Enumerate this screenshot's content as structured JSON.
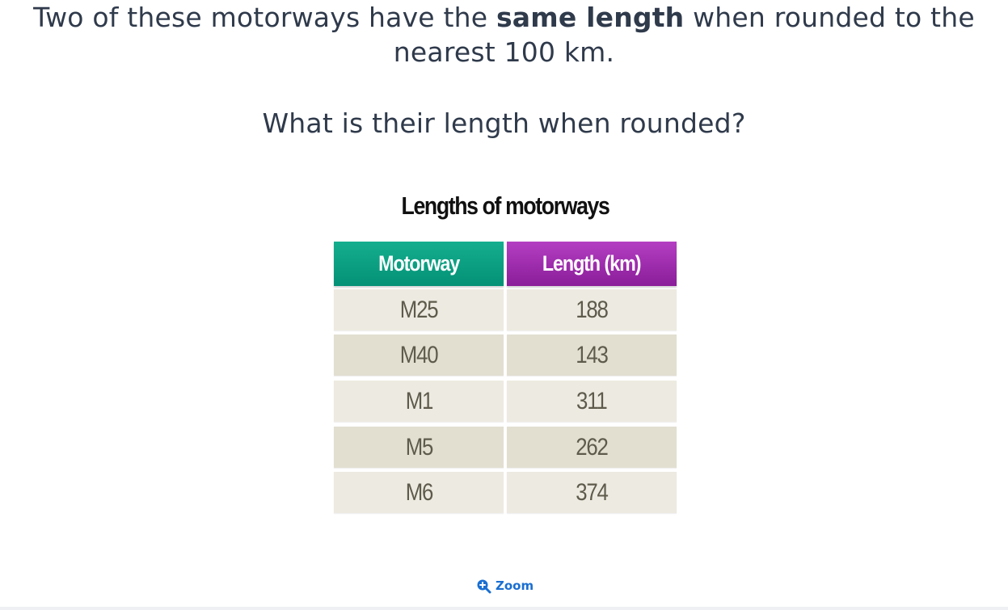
{
  "question": {
    "text_before": "Two of these motorways have the ",
    "bold": "same length",
    "text_after": " when rounded to the",
    "line2": "nearest 100 km."
  },
  "prompt": "What is their length when rounded?",
  "table": {
    "title": "Lengths of motorways",
    "headers": [
      "Motorway",
      "Length (km)"
    ],
    "header_colors": [
      "#0aa083",
      "#a02eb0"
    ],
    "rows": [
      [
        "M25",
        "188"
      ],
      [
        "M40",
        "143"
      ],
      [
        "M1",
        "311"
      ],
      [
        "M5",
        "262"
      ],
      [
        "M6",
        "374"
      ]
    ]
  },
  "zoom": {
    "label": "Zoom",
    "icon": "zoom-in-icon"
  }
}
